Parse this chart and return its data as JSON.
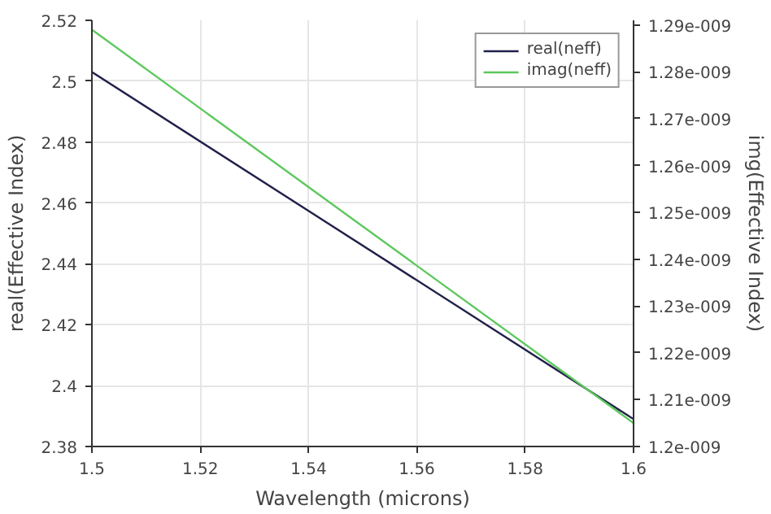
{
  "chart_data": {
    "type": "line",
    "xlabel": "Wavelength (microns)",
    "ylabel": "real(Effective Index)",
    "y2label": "img(Effective Index)",
    "x": [
      1.5,
      1.6
    ],
    "series": [
      {
        "name": "real(neff)",
        "color": "#20204a",
        "values": [
          2.503,
          2.389
        ]
      },
      {
        "name": "imag(neff)",
        "color": "#5cc85c",
        "values": [
          1.289e-09,
          1.205e-09
        ],
        "axis": "y2"
      }
    ],
    "xlim": [
      1.5,
      1.6
    ],
    "xticks": [
      1.5,
      1.52,
      1.54,
      1.56,
      1.58,
      1.6
    ],
    "ylim": [
      2.38,
      2.52
    ],
    "yticks": [
      2.38,
      2.4,
      2.42,
      2.44,
      2.46,
      2.48,
      2.5,
      2.52
    ],
    "y2lim": [
      1.2e-09,
      1.291e-09
    ],
    "y2ticks": [
      {
        "value": 1.2e-09,
        "label": "1.2e-009"
      },
      {
        "value": 1.21e-09,
        "label": "1.21e-009"
      },
      {
        "value": 1.22e-09,
        "label": "1.22e-009"
      },
      {
        "value": 1.23e-09,
        "label": "1.23e-009"
      },
      {
        "value": 1.24e-09,
        "label": "1.24e-009"
      },
      {
        "value": 1.25e-09,
        "label": "1.25e-009"
      },
      {
        "value": 1.26e-09,
        "label": "1.26e-009"
      },
      {
        "value": 1.27e-09,
        "label": "1.27e-009"
      },
      {
        "value": 1.28e-09,
        "label": "1.28e-009"
      },
      {
        "value": 1.29e-09,
        "label": "1.29e-009"
      }
    ],
    "grid": true,
    "legend": "top right",
    "line_style": "solid"
  }
}
